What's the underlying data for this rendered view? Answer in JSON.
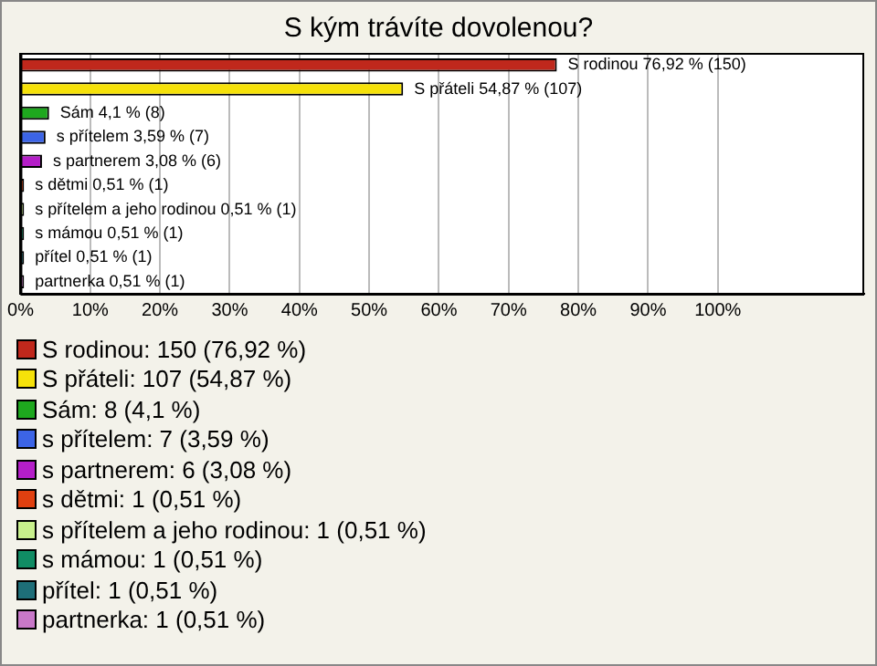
{
  "chart_data": {
    "type": "bar",
    "orientation": "horizontal",
    "title": "S kým trávíte dovolenou?",
    "categories": [
      null,
      null,
      null,
      null,
      null,
      null,
      null,
      null,
      null,
      null
    ],
    "tick_labels": "x",
    "grid": "x",
    "legend": "bottom",
    "xlim": [
      0,
      121
    ],
    "xticks": [
      {
        "value": 0,
        "label": "0%"
      },
      {
        "value": 10,
        "label": "10%"
      },
      {
        "value": 20,
        "label": "20%"
      },
      {
        "value": 30,
        "label": "30%"
      },
      {
        "value": 40,
        "label": "40%"
      },
      {
        "value": 50,
        "label": "50%"
      },
      {
        "value": 60,
        "label": "60%"
      },
      {
        "value": 70,
        "label": "70%"
      },
      {
        "value": 80,
        "label": "80%"
      },
      {
        "value": 90,
        "label": "90%"
      },
      {
        "value": 100,
        "label": "100%"
      }
    ],
    "series": [
      {
        "name": "S rodinou: 150 (76,92 %)",
        "color": "#c0281c",
        "values": [
          76.92,
          null,
          null,
          null,
          null,
          null,
          null,
          null,
          null,
          null
        ],
        "value_labels": [
          "S rodinou 76,92 % (150)",
          null,
          null,
          null,
          null,
          null,
          null,
          null,
          null,
          null
        ]
      },
      {
        "name": "S přáteli: 107 (54,87 %)",
        "color": "#f5e10a",
        "values": [
          null,
          54.87,
          null,
          null,
          null,
          null,
          null,
          null,
          null,
          null
        ],
        "value_labels": [
          null,
          "S přáteli 54,87 % (107)",
          null,
          null,
          null,
          null,
          null,
          null,
          null,
          null
        ]
      },
      {
        "name": "Sám: 8 (4,1 %)",
        "color": "#1ea81e",
        "values": [
          null,
          null,
          4.1,
          null,
          null,
          null,
          null,
          null,
          null,
          null
        ],
        "value_labels": [
          null,
          null,
          "Sám 4,1 % (8)",
          null,
          null,
          null,
          null,
          null,
          null,
          null
        ]
      },
      {
        "name": "s přítelem: 7 (3,59 %)",
        "color": "#3c64e6",
        "values": [
          null,
          null,
          null,
          3.59,
          null,
          null,
          null,
          null,
          null,
          null
        ],
        "value_labels": [
          null,
          null,
          null,
          "s přítelem 3,59 % (7)",
          null,
          null,
          null,
          null,
          null,
          null
        ]
      },
      {
        "name": "s partnerem: 6 (3,08 %)",
        "color": "#b41ec8",
        "values": [
          null,
          null,
          null,
          null,
          3.08,
          null,
          null,
          null,
          null,
          null
        ],
        "value_labels": [
          null,
          null,
          null,
          null,
          "s partnerem 3,08 % (6)",
          null,
          null,
          null,
          null,
          null
        ]
      },
      {
        "name": "s dětmi: 1 (0,51 %)",
        "color": "#e04010",
        "values": [
          null,
          null,
          null,
          null,
          null,
          0.51,
          null,
          null,
          null,
          null
        ],
        "value_labels": [
          null,
          null,
          null,
          null,
          null,
          "s dětmi 0,51 % (1)",
          null,
          null,
          null,
          null
        ]
      },
      {
        "name": "s přítelem a jeho rodinou: 1 (0,51 %)",
        "color": "#c8f08c",
        "values": [
          null,
          null,
          null,
          null,
          null,
          null,
          0.51,
          null,
          null,
          null
        ],
        "value_labels": [
          null,
          null,
          null,
          null,
          null,
          null,
          "s přítelem a jeho rodinou 0,51 % (1)",
          null,
          null,
          null
        ]
      },
      {
        "name": "s mámou: 1 (0,51 %)",
        "color": "#108c64",
        "values": [
          null,
          null,
          null,
          null,
          null,
          null,
          null,
          0.51,
          null,
          null
        ],
        "value_labels": [
          null,
          null,
          null,
          null,
          null,
          null,
          null,
          "s mámou 0,51 % (1)",
          null,
          null
        ]
      },
      {
        "name": "přítel: 1 (0,51 %)",
        "color": "#1e6e78",
        "values": [
          null,
          null,
          null,
          null,
          null,
          null,
          null,
          null,
          0.51,
          null
        ],
        "value_labels": [
          null,
          null,
          null,
          null,
          null,
          null,
          null,
          null,
          "přítel 0,51 % (1)",
          null
        ]
      },
      {
        "name": "partnerka: 1 (0,51 %)",
        "color": "#c878c8",
        "values": [
          null,
          null,
          null,
          null,
          null,
          null,
          null,
          null,
          null,
          0.51
        ],
        "value_labels": [
          null,
          null,
          null,
          null,
          null,
          null,
          null,
          null,
          null,
          "partnerka 0,51 % (1)"
        ]
      }
    ]
  }
}
